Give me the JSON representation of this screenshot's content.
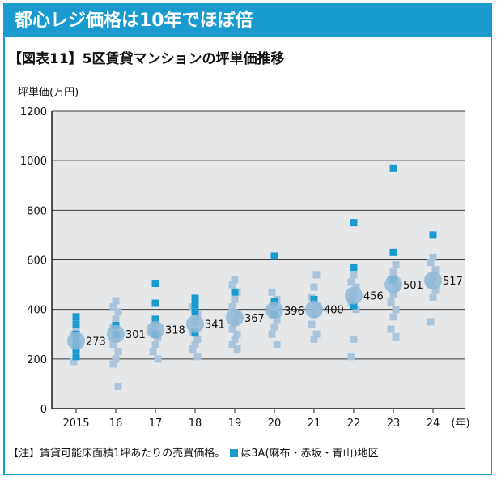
{
  "header": {
    "title": "都心レジ価格は10年でほぼ倍"
  },
  "chart_data": {
    "type": "scatter",
    "title": "【図表11】5区賃貸マンションの坪単価推移",
    "ylabel": "坪単価(万円)",
    "xlabel": "(年)",
    "ylim": [
      0,
      1200
    ],
    "yticks": [
      0,
      200,
      400,
      600,
      800,
      1000,
      1200
    ],
    "categories": [
      "2015",
      "16",
      "17",
      "18",
      "19",
      "20",
      "21",
      "22",
      "23",
      "24"
    ],
    "average": [
      273,
      301,
      318,
      341,
      367,
      396,
      400,
      456,
      501,
      517
    ],
    "average_labels": [
      "273",
      "301",
      "318",
      "341",
      "367",
      "396",
      "400",
      "456",
      "501",
      "517"
    ],
    "series": [
      {
        "name": "5区",
        "color": "#a9c4db",
        "points": [
          [
            0,
            190
          ],
          [
            0,
            230
          ],
          [
            0,
            260
          ],
          [
            0,
            300
          ],
          [
            0,
            330
          ],
          [
            1,
            90
          ],
          [
            1,
            180
          ],
          [
            1,
            200
          ],
          [
            1,
            230
          ],
          [
            1,
            260
          ],
          [
            1,
            280
          ],
          [
            1,
            300
          ],
          [
            1,
            330
          ],
          [
            1,
            360
          ],
          [
            1,
            390
          ],
          [
            1,
            410
          ],
          [
            1,
            435
          ],
          [
            2,
            200
          ],
          [
            2,
            230
          ],
          [
            2,
            260
          ],
          [
            2,
            290
          ],
          [
            2,
            310
          ],
          [
            2,
            340
          ],
          [
            3,
            210
          ],
          [
            3,
            240
          ],
          [
            3,
            260
          ],
          [
            3,
            280
          ],
          [
            3,
            310
          ],
          [
            3,
            350
          ],
          [
            3,
            380
          ],
          [
            3,
            410
          ],
          [
            3,
            430
          ],
          [
            4,
            240
          ],
          [
            4,
            260
          ],
          [
            4,
            280
          ],
          [
            4,
            300
          ],
          [
            4,
            320
          ],
          [
            4,
            350
          ],
          [
            4,
            380
          ],
          [
            4,
            410
          ],
          [
            4,
            440
          ],
          [
            4,
            470
          ],
          [
            4,
            500
          ],
          [
            4,
            520
          ],
          [
            5,
            260
          ],
          [
            5,
            300
          ],
          [
            5,
            330
          ],
          [
            5,
            360
          ],
          [
            5,
            390
          ],
          [
            5,
            410
          ],
          [
            5,
            440
          ],
          [
            5,
            470
          ],
          [
            6,
            280
          ],
          [
            6,
            300
          ],
          [
            6,
            340
          ],
          [
            6,
            380
          ],
          [
            6,
            410
          ],
          [
            6,
            450
          ],
          [
            6,
            490
          ],
          [
            6,
            540
          ],
          [
            7,
            210
          ],
          [
            7,
            280
          ],
          [
            7,
            400
          ],
          [
            7,
            430
          ],
          [
            7,
            460
          ],
          [
            7,
            490
          ],
          [
            7,
            510
          ],
          [
            7,
            540
          ],
          [
            8,
            290
          ],
          [
            8,
            320
          ],
          [
            8,
            370
          ],
          [
            8,
            400
          ],
          [
            8,
            430
          ],
          [
            8,
            460
          ],
          [
            8,
            490
          ],
          [
            8,
            520
          ],
          [
            8,
            550
          ],
          [
            8,
            580
          ],
          [
            9,
            350
          ],
          [
            9,
            450
          ],
          [
            9,
            480
          ],
          [
            9,
            500
          ],
          [
            9,
            530
          ],
          [
            9,
            560
          ],
          [
            9,
            590
          ],
          [
            9,
            610
          ]
        ]
      },
      {
        "name": "3A(麻布・赤坂・青山)地区",
        "color": "#1a9bd0",
        "points": [
          [
            0,
            210
          ],
          [
            0,
            240
          ],
          [
            0,
            270
          ],
          [
            0,
            300
          ],
          [
            0,
            340
          ],
          [
            0,
            370
          ],
          [
            1,
            300
          ],
          [
            1,
            335
          ],
          [
            2,
            300
          ],
          [
            2,
            360
          ],
          [
            2,
            425
          ],
          [
            2,
            505
          ],
          [
            3,
            305
          ],
          [
            3,
            390
          ],
          [
            3,
            420
          ],
          [
            3,
            445
          ],
          [
            4,
            470
          ],
          [
            5,
            380
          ],
          [
            5,
            430
          ],
          [
            5,
            615
          ],
          [
            6,
            440
          ],
          [
            7,
            415
          ],
          [
            7,
            570
          ],
          [
            7,
            750
          ],
          [
            8,
            520
          ],
          [
            8,
            630
          ],
          [
            8,
            970
          ],
          [
            9,
            700
          ]
        ]
      }
    ]
  },
  "note": {
    "prefix": "【注】賃貸可能床面積1坪あたりの売買価格。",
    "legend": "は3A(麻布・赤坂・青山)地区"
  }
}
